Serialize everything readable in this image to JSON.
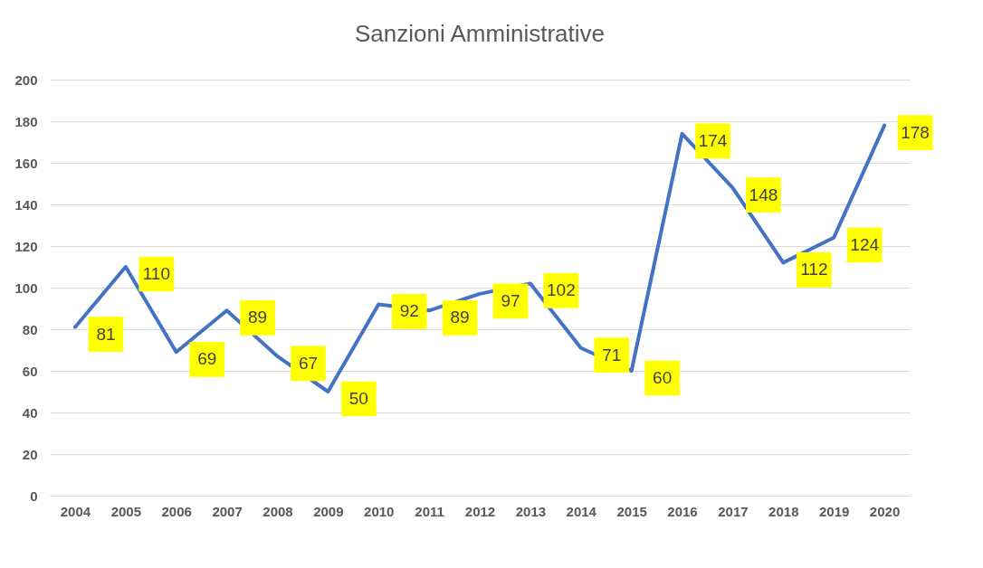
{
  "chart_data": {
    "type": "line",
    "title": "Sanzioni Amministrative",
    "categories": [
      "2004",
      "2005",
      "2006",
      "2007",
      "2008",
      "2009",
      "2010",
      "2011",
      "2012",
      "2013",
      "2014",
      "2015",
      "2016",
      "2017",
      "2018",
      "2019",
      "2020"
    ],
    "series": [
      {
        "color": "#4472c4",
        "values": [
          81,
          110,
          69,
          89,
          67,
          50,
          92,
          89,
          97,
          102,
          71,
          60,
          174,
          148,
          112,
          124,
          178
        ]
      }
    ],
    "ylim": [
      0,
      200
    ],
    "yticks": [
      0,
      20,
      40,
      60,
      80,
      100,
      120,
      140,
      160,
      180,
      200
    ],
    "grid": "y",
    "data_labels": true,
    "legend": false,
    "marker": "none",
    "line_style": "solid"
  }
}
